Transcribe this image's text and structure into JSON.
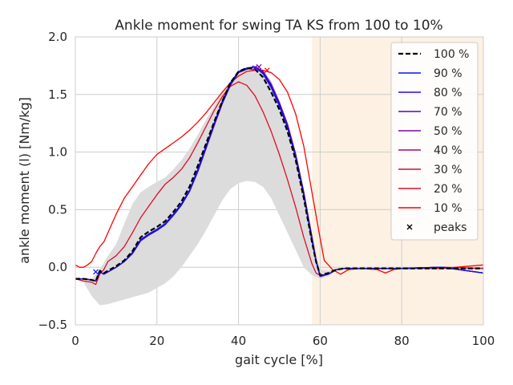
{
  "chart_data": {
    "type": "line",
    "title": "Ankle moment for swing TA KS from 100 to 10%",
    "xlabel": "gait cycle [%]",
    "ylabel": "ankle moment (l) [Nm/kg]",
    "xlim": [
      0,
      100
    ],
    "ylim": [
      -0.5,
      2.0
    ],
    "xticks": [
      0,
      20,
      40,
      60,
      80,
      100
    ],
    "yticks": [
      -0.5,
      0.0,
      0.5,
      1.0,
      1.5,
      2.0
    ],
    "xtick_labels": [
      "0",
      "20",
      "40",
      "60",
      "80",
      "100"
    ],
    "ytick_labels": [
      "−0.5",
      "0.0",
      "0.5",
      "1.0",
      "1.5",
      "2.0"
    ],
    "grid": true,
    "legend_position": "top-right",
    "shaded_region": {
      "x_range": [
        58,
        100
      ],
      "color": "#fdf1e3"
    },
    "band": {
      "color": "#dcdcdc",
      "x": [
        0,
        2,
        4,
        6,
        8,
        10,
        12,
        14,
        16,
        18,
        20,
        22,
        24,
        26,
        28,
        30,
        32,
        34,
        36,
        38,
        40,
        42,
        44,
        46,
        48,
        50,
        52,
        54,
        56,
        58,
        60,
        62,
        64,
        66,
        70,
        80,
        90,
        100
      ],
      "upper": [
        -0.1,
        -0.1,
        -0.1,
        -0.02,
        0.1,
        0.2,
        0.38,
        0.55,
        0.65,
        0.7,
        0.74,
        0.78,
        0.85,
        0.93,
        1.03,
        1.15,
        1.28,
        1.4,
        1.52,
        1.62,
        1.68,
        1.72,
        1.74,
        1.72,
        1.62,
        1.45,
        1.25,
        1.0,
        0.65,
        0.3,
        -0.02,
        -0.03,
        -0.02,
        -0.01,
        -0.01,
        -0.01,
        -0.01,
        -0.01
      ],
      "lower": [
        -0.1,
        -0.13,
        -0.25,
        -0.33,
        -0.32,
        -0.3,
        -0.28,
        -0.26,
        -0.24,
        -0.22,
        -0.18,
        -0.14,
        -0.08,
        0.0,
        0.1,
        0.2,
        0.32,
        0.45,
        0.58,
        0.68,
        0.73,
        0.75,
        0.74,
        0.7,
        0.6,
        0.45,
        0.3,
        0.15,
        0.0,
        -0.07,
        -0.1,
        -0.08,
        -0.03,
        -0.02,
        -0.02,
        -0.02,
        -0.02,
        -0.02
      ]
    },
    "series": [
      {
        "name": "100 %",
        "color": "#000000",
        "dashed": true,
        "width": 2.2,
        "x": [
          0,
          2,
          4,
          5,
          6,
          7,
          8,
          10,
          12,
          14,
          16,
          18,
          20,
          22,
          24,
          26,
          28,
          30,
          32,
          34,
          36,
          38,
          40,
          42,
          44,
          46,
          48,
          50,
          52,
          54,
          56,
          58,
          59,
          60,
          62,
          64,
          66,
          70,
          80,
          90,
          100
        ],
        "y": [
          -0.1,
          -0.1,
          -0.11,
          -0.12,
          -0.03,
          -0.05,
          -0.03,
          0.01,
          0.06,
          0.14,
          0.26,
          0.31,
          0.35,
          0.4,
          0.48,
          0.57,
          0.7,
          0.88,
          1.07,
          1.26,
          1.44,
          1.6,
          1.7,
          1.73,
          1.72,
          1.65,
          1.52,
          1.37,
          1.18,
          0.93,
          0.6,
          0.22,
          0.05,
          -0.07,
          -0.05,
          -0.02,
          -0.01,
          -0.01,
          -0.01,
          -0.01,
          -0.01
        ]
      },
      {
        "name": "90 %",
        "color": "#0b12f6",
        "dashed": false,
        "width": 1.3,
        "x": [
          0,
          2,
          4,
          5,
          6,
          7,
          8,
          10,
          12,
          14,
          16,
          18,
          20,
          22,
          24,
          26,
          28,
          30,
          32,
          34,
          36,
          38,
          40,
          42,
          44,
          46,
          48,
          50,
          52,
          54,
          56,
          58,
          59,
          60,
          62,
          64,
          66,
          70,
          80,
          90,
          100
        ],
        "y": [
          -0.1,
          -0.1,
          -0.11,
          -0.12,
          -0.04,
          -0.06,
          -0.04,
          0.0,
          0.05,
          0.13,
          0.24,
          0.29,
          0.33,
          0.38,
          0.46,
          0.55,
          0.67,
          0.85,
          1.05,
          1.25,
          1.44,
          1.6,
          1.7,
          1.73,
          1.74,
          1.68,
          1.56,
          1.4,
          1.21,
          0.95,
          0.62,
          0.23,
          0.05,
          -0.08,
          -0.06,
          -0.02,
          -0.01,
          -0.01,
          -0.01,
          0.0,
          -0.05
        ]
      },
      {
        "name": "80 %",
        "color": "#2b0ae0",
        "dashed": false,
        "width": 1.3,
        "x": [
          0,
          2,
          4,
          5,
          6,
          7,
          8,
          10,
          12,
          14,
          16,
          18,
          20,
          22,
          24,
          26,
          28,
          30,
          32,
          34,
          36,
          38,
          40,
          42,
          44,
          46,
          48,
          50,
          52,
          54,
          56,
          58,
          59,
          60,
          62,
          64,
          66,
          70,
          80,
          90,
          100
        ],
        "y": [
          -0.1,
          -0.1,
          -0.11,
          -0.12,
          -0.04,
          -0.06,
          -0.04,
          0.0,
          0.05,
          0.12,
          0.23,
          0.28,
          0.32,
          0.37,
          0.45,
          0.54,
          0.66,
          0.84,
          1.04,
          1.24,
          1.43,
          1.59,
          1.69,
          1.72,
          1.74,
          1.69,
          1.57,
          1.41,
          1.22,
          0.96,
          0.63,
          0.24,
          0.05,
          -0.08,
          -0.06,
          -0.02,
          -0.01,
          -0.01,
          -0.01,
          0.0,
          -0.05
        ]
      },
      {
        "name": "70 %",
        "color": "#4b0bc2",
        "dashed": false,
        "width": 1.3,
        "x": [
          0,
          2,
          4,
          5,
          6,
          7,
          8,
          10,
          12,
          14,
          16,
          18,
          20,
          22,
          24,
          26,
          28,
          30,
          32,
          34,
          36,
          38,
          40,
          42,
          44,
          46,
          48,
          50,
          52,
          54,
          56,
          58,
          59,
          60,
          62,
          64,
          66,
          70,
          80,
          90,
          100
        ],
        "y": [
          -0.1,
          -0.1,
          -0.11,
          -0.12,
          -0.04,
          -0.06,
          -0.04,
          0.0,
          0.05,
          0.12,
          0.23,
          0.28,
          0.32,
          0.37,
          0.45,
          0.54,
          0.66,
          0.83,
          1.03,
          1.23,
          1.42,
          1.58,
          1.69,
          1.72,
          1.74,
          1.7,
          1.58,
          1.42,
          1.23,
          0.97,
          0.64,
          0.25,
          0.06,
          -0.08,
          -0.06,
          -0.02,
          -0.01,
          -0.01,
          -0.01,
          0.0,
          -0.05
        ]
      },
      {
        "name": "50 %",
        "color": "#7a0a9a",
        "dashed": false,
        "width": 1.3,
        "x": [
          0,
          2,
          4,
          5,
          6,
          7,
          8,
          10,
          12,
          14,
          16,
          18,
          20,
          22,
          24,
          26,
          28,
          30,
          32,
          34,
          36,
          38,
          40,
          42,
          44,
          46,
          48,
          50,
          52,
          54,
          56,
          58,
          59,
          60,
          62,
          64,
          66,
          70,
          80,
          90,
          100
        ],
        "y": [
          -0.1,
          -0.1,
          -0.11,
          -0.12,
          -0.04,
          -0.06,
          -0.04,
          0.0,
          0.05,
          0.12,
          0.23,
          0.28,
          0.32,
          0.37,
          0.45,
          0.54,
          0.66,
          0.83,
          1.03,
          1.23,
          1.42,
          1.58,
          1.69,
          1.72,
          1.74,
          1.7,
          1.59,
          1.43,
          1.24,
          0.98,
          0.65,
          0.26,
          0.06,
          -0.07,
          -0.06,
          -0.02,
          -0.01,
          -0.01,
          -0.01,
          0.0,
          -0.05
        ]
      },
      {
        "name": "40 %",
        "color": "#9a0d76",
        "dashed": false,
        "width": 1.3,
        "x": [
          0,
          2,
          4,
          5,
          6,
          7,
          8,
          10,
          12,
          14,
          16,
          18,
          20,
          22,
          24,
          26,
          28,
          30,
          32,
          34,
          36,
          38,
          40,
          42,
          44,
          46,
          48,
          50,
          52,
          54,
          56,
          58,
          59,
          60,
          62,
          64,
          66,
          70,
          80,
          90,
          100
        ],
        "y": [
          -0.1,
          -0.1,
          -0.11,
          -0.12,
          -0.04,
          -0.06,
          -0.04,
          0.0,
          0.05,
          0.12,
          0.23,
          0.28,
          0.32,
          0.37,
          0.45,
          0.54,
          0.66,
          0.83,
          1.03,
          1.23,
          1.42,
          1.58,
          1.69,
          1.72,
          1.74,
          1.7,
          1.59,
          1.43,
          1.24,
          0.98,
          0.65,
          0.26,
          0.06,
          -0.07,
          -0.06,
          -0.02,
          -0.01,
          -0.01,
          -0.01,
          0.0,
          -0.05
        ]
      },
      {
        "name": "30 %",
        "color": "#bf0f50",
        "dashed": false,
        "width": 1.3,
        "x": [
          0,
          2,
          4,
          5,
          6,
          7,
          8,
          10,
          12,
          14,
          16,
          18,
          20,
          22,
          24,
          26,
          28,
          30,
          32,
          34,
          36,
          38,
          40,
          42,
          44,
          46,
          48,
          50,
          52,
          54,
          56,
          58,
          59,
          60,
          62,
          64,
          66,
          70,
          80,
          90,
          100
        ],
        "y": [
          -0.1,
          -0.1,
          -0.11,
          -0.12,
          -0.04,
          -0.06,
          -0.04,
          0.0,
          0.05,
          0.12,
          0.23,
          0.28,
          0.32,
          0.37,
          0.45,
          0.54,
          0.66,
          0.83,
          1.03,
          1.23,
          1.42,
          1.58,
          1.69,
          1.72,
          1.74,
          1.7,
          1.59,
          1.43,
          1.24,
          0.98,
          0.65,
          0.26,
          0.06,
          -0.07,
          -0.06,
          -0.02,
          -0.01,
          -0.01,
          -0.01,
          0.0,
          -0.05
        ]
      },
      {
        "name": "20 %",
        "color": "#e00c28",
        "dashed": false,
        "width": 1.3,
        "x": [
          0,
          2,
          4,
          5,
          6,
          7,
          8,
          10,
          12,
          14,
          16,
          18,
          20,
          22,
          24,
          26,
          28,
          30,
          32,
          34,
          36,
          38,
          40,
          42,
          44,
          46,
          48,
          50,
          52,
          54,
          56,
          58,
          59,
          60,
          62,
          64,
          66,
          70,
          80,
          90,
          100
        ],
        "y": [
          -0.1,
          -0.12,
          -0.13,
          -0.15,
          -0.06,
          -0.02,
          0.05,
          0.1,
          0.18,
          0.3,
          0.43,
          0.53,
          0.63,
          0.72,
          0.78,
          0.85,
          0.95,
          1.08,
          1.22,
          1.36,
          1.48,
          1.57,
          1.61,
          1.58,
          1.49,
          1.35,
          1.18,
          0.98,
          0.76,
          0.52,
          0.26,
          0.03,
          -0.05,
          -0.07,
          -0.06,
          -0.02,
          -0.01,
          -0.01,
          -0.01,
          0.0,
          -0.01
        ]
      },
      {
        "name": "10 %",
        "color": "#ff0000",
        "dashed": false,
        "width": 1.3,
        "x": [
          0,
          1,
          2,
          3,
          4,
          5,
          6,
          7,
          8,
          10,
          12,
          14,
          16,
          18,
          20,
          22,
          24,
          26,
          28,
          30,
          32,
          34,
          36,
          38,
          40,
          42,
          44,
          46,
          48,
          50,
          52,
          54,
          56,
          58,
          60,
          61,
          63,
          65,
          67,
          70,
          74,
          76,
          78,
          80,
          90,
          100
        ],
        "y": [
          0.02,
          0.0,
          0.0,
          0.02,
          0.05,
          0.12,
          0.18,
          0.22,
          0.3,
          0.46,
          0.6,
          0.7,
          0.8,
          0.9,
          0.98,
          1.03,
          1.08,
          1.13,
          1.19,
          1.26,
          1.34,
          1.43,
          1.52,
          1.6,
          1.66,
          1.7,
          1.71,
          1.71,
          1.69,
          1.63,
          1.52,
          1.33,
          1.05,
          0.65,
          0.25,
          0.06,
          -0.02,
          -0.06,
          -0.02,
          -0.01,
          -0.02,
          -0.05,
          -0.02,
          -0.01,
          -0.01,
          0.02
        ]
      }
    ],
    "peaks": {
      "name": "peaks",
      "x": [
        5,
        44,
        45,
        47
      ],
      "y": [
        -0.04,
        1.73,
        1.74,
        1.71
      ]
    }
  }
}
